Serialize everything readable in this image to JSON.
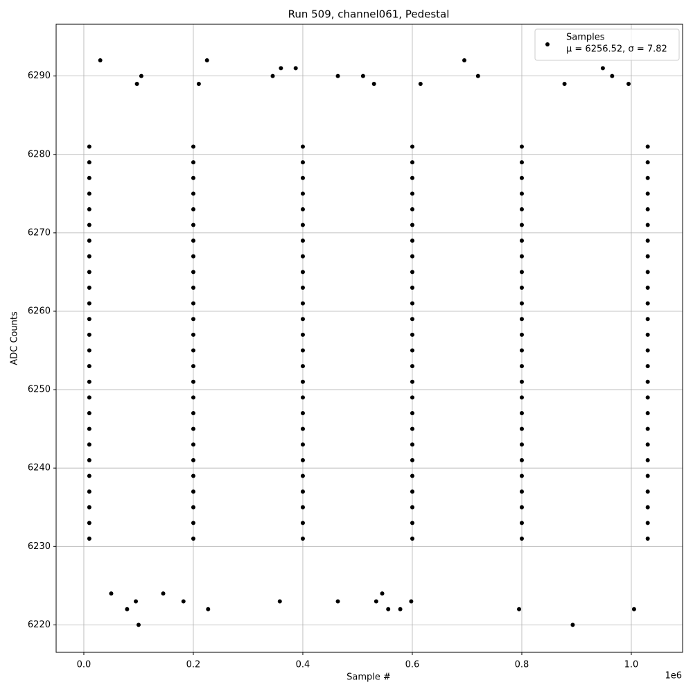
{
  "chart_data": {
    "type": "scatter",
    "title": "Run 509, channel061, Pedestal",
    "x_label": "Sample #",
    "y_label": "ADC Counts",
    "x_offset_label": "1e6",
    "xlim": [
      -50600,
      1093700
    ],
    "ylim": [
      6216.5,
      6296.6
    ],
    "xticks": [
      {
        "value": 0,
        "label": "0.0"
      },
      {
        "value": 200000,
        "label": "0.2"
      },
      {
        "value": 400000,
        "label": "0.4"
      },
      {
        "value": 600000,
        "label": "0.6"
      },
      {
        "value": 800000,
        "label": "0.8"
      },
      {
        "value": 1000000,
        "label": "1.0"
      }
    ],
    "yticks": [
      6220,
      6230,
      6240,
      6250,
      6260,
      6270,
      6280,
      6290
    ],
    "grid": true,
    "legend_position": "upper right",
    "legend_note": "μ = 6256.52, σ = 7.82",
    "series": [
      {
        "name": "Samples",
        "color": "#000000",
        "x": [
          10000,
          200000,
          400000,
          600000,
          800000,
          1030000,
          10000,
          200000,
          400000,
          600000,
          800000,
          1030000,
          10000,
          200000,
          400000,
          600000,
          800000,
          1030000,
          10000,
          200000,
          400000,
          600000,
          800000,
          1030000,
          10000,
          200000,
          400000,
          600000,
          800000,
          1030000,
          10000,
          200000,
          400000,
          600000,
          800000,
          1030000,
          10000,
          200000,
          400000,
          600000,
          800000,
          1030000,
          10000,
          200000,
          400000,
          600000,
          800000,
          1030000,
          10000,
          200000,
          400000,
          600000,
          800000,
          1030000,
          10000,
          200000,
          400000,
          600000,
          800000,
          1030000,
          10000,
          200000,
          400000,
          600000,
          800000,
          1030000,
          10000,
          200000,
          400000,
          600000,
          800000,
          1030000,
          10000,
          200000,
          400000,
          600000,
          800000,
          1030000,
          10000,
          200000,
          400000,
          600000,
          800000,
          1030000,
          10000,
          200000,
          400000,
          600000,
          800000,
          1030000,
          10000,
          200000,
          400000,
          600000,
          800000,
          1030000,
          10000,
          200000,
          400000,
          600000,
          800000,
          1030000,
          10000,
          200000,
          400000,
          600000,
          800000,
          1030000,
          10000,
          200000,
          400000,
          600000,
          800000,
          1030000,
          10000,
          200000,
          400000,
          600000,
          800000,
          1030000,
          10000,
          200000,
          400000,
          600000,
          800000,
          1030000,
          10000,
          200000,
          400000,
          600000,
          800000,
          1030000,
          10000,
          200000,
          400000,
          600000,
          800000,
          1030000,
          10000,
          200000,
          400000,
          600000,
          800000,
          1030000,
          10000,
          200000,
          400000,
          600000,
          800000,
          1030000,
          10000,
          200000,
          400000,
          600000,
          800000,
          1030000,
          30000,
          225000,
          695000,
          100000,
          893000,
          105000,
          97000,
          345000,
          360000,
          387000,
          464000,
          510000,
          720000,
          948000,
          965000,
          79000,
          227000,
          556000,
          578000,
          795000,
          1005000,
          182000,
          358000,
          464000,
          534000,
          598000,
          95000,
          50000,
          145000,
          545000,
          615000,
          878000,
          995000,
          210000,
          530000
        ],
        "values": [
          6231,
          6231,
          6231,
          6231,
          6231,
          6231,
          6233,
          6233,
          6233,
          6233,
          6233,
          6233,
          6235,
          6235,
          6235,
          6235,
          6235,
          6235,
          6237,
          6237,
          6237,
          6237,
          6237,
          6237,
          6239,
          6239,
          6239,
          6239,
          6239,
          6239,
          6241,
          6241,
          6241,
          6241,
          6241,
          6241,
          6243,
          6243,
          6243,
          6243,
          6243,
          6243,
          6245,
          6245,
          6245,
          6245,
          6245,
          6245,
          6247,
          6247,
          6247,
          6247,
          6247,
          6247,
          6249,
          6249,
          6249,
          6249,
          6249,
          6249,
          6251,
          6251,
          6251,
          6251,
          6251,
          6251,
          6253,
          6253,
          6253,
          6253,
          6253,
          6253,
          6255,
          6255,
          6255,
          6255,
          6255,
          6255,
          6257,
          6257,
          6257,
          6257,
          6257,
          6257,
          6259,
          6259,
          6259,
          6259,
          6259,
          6259,
          6261,
          6261,
          6261,
          6261,
          6261,
          6261,
          6263,
          6263,
          6263,
          6263,
          6263,
          6263,
          6265,
          6265,
          6265,
          6265,
          6265,
          6265,
          6267,
          6267,
          6267,
          6267,
          6267,
          6267,
          6269,
          6269,
          6269,
          6269,
          6269,
          6269,
          6271,
          6271,
          6271,
          6271,
          6271,
          6271,
          6273,
          6273,
          6273,
          6273,
          6273,
          6273,
          6275,
          6275,
          6275,
          6275,
          6275,
          6275,
          6277,
          6277,
          6277,
          6277,
          6277,
          6277,
          6279,
          6279,
          6279,
          6279,
          6279,
          6279,
          6281,
          6281,
          6281,
          6281,
          6281,
          6281,
          6292,
          6292,
          6292,
          6220,
          6220,
          6290,
          6289,
          6290,
          6291,
          6291,
          6290,
          6290,
          6290,
          6291,
          6290,
          6222,
          6222,
          6222,
          6222,
          6222,
          6222,
          6223,
          6223,
          6223,
          6223,
          6223,
          6223,
          6224,
          6224,
          6224,
          6289,
          6289,
          6289,
          6289,
          6289
        ]
      }
    ]
  }
}
